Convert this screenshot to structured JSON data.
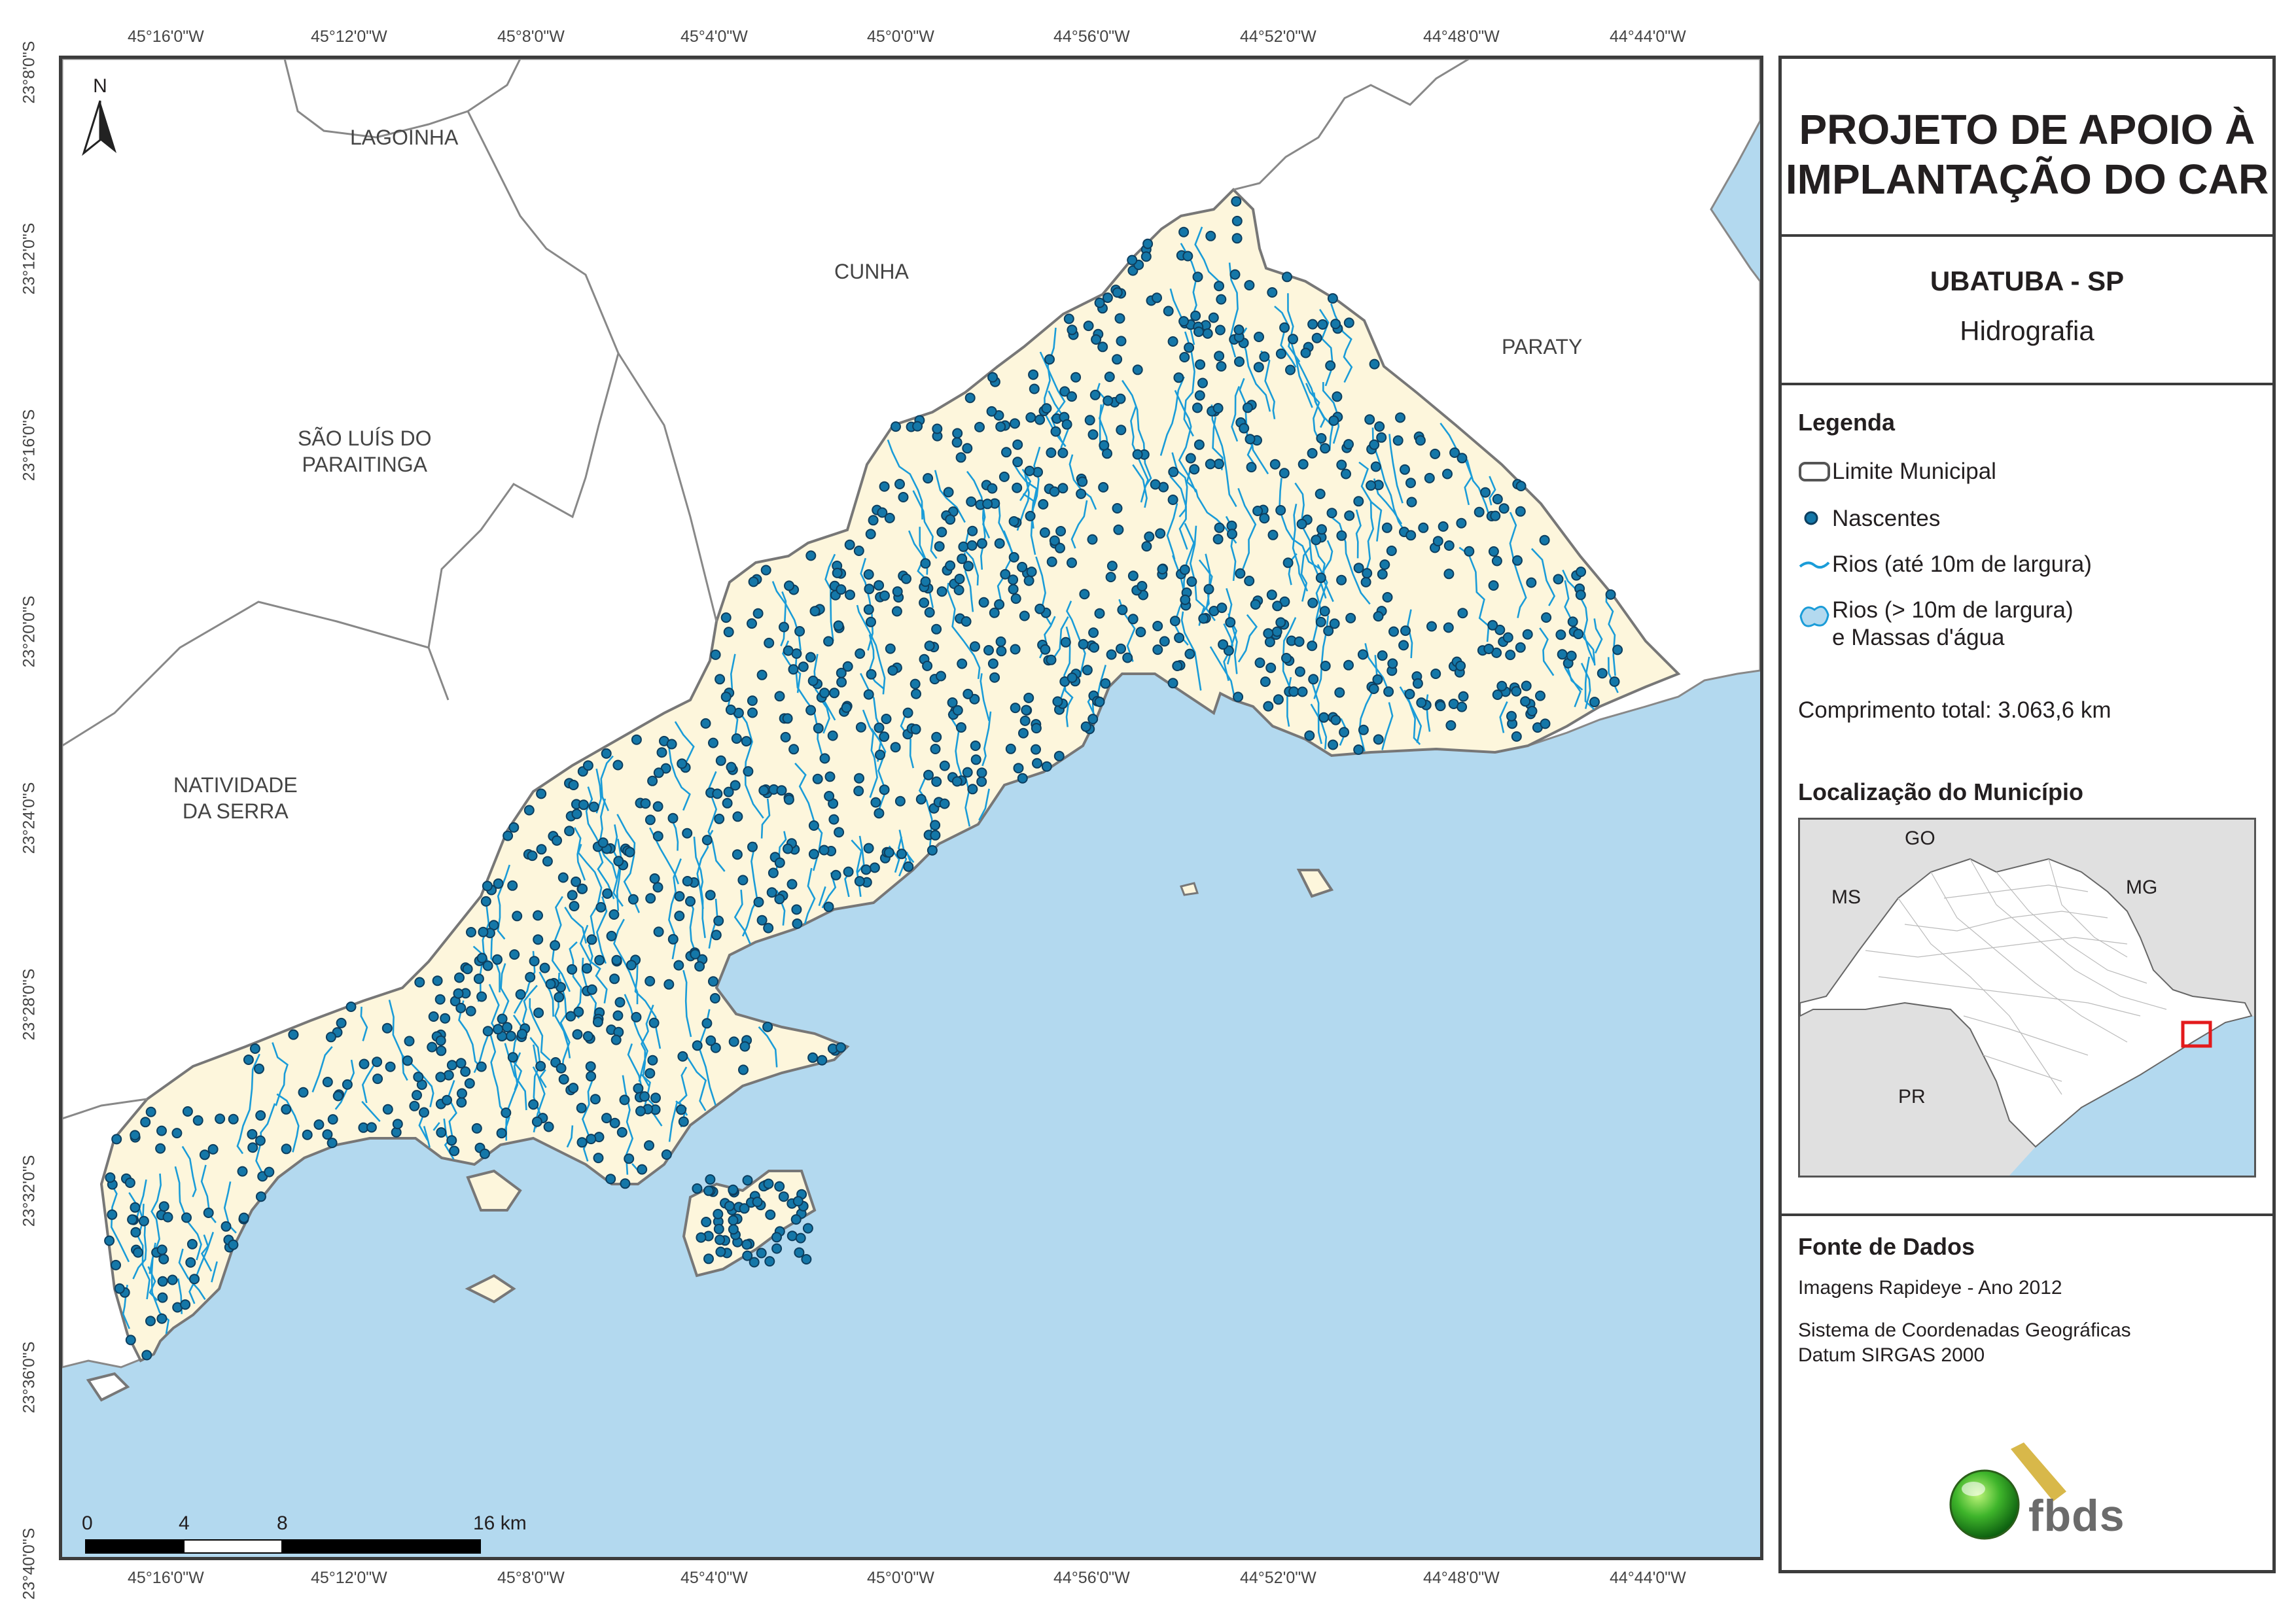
{
  "coords": {
    "top": [
      "45°16'0\"W",
      "45°12'0\"W",
      "45°8'0\"W",
      "45°4'0\"W",
      "45°0'0\"W",
      "44°56'0\"W",
      "44°52'0\"W",
      "44°48'0\"W",
      "44°44'0\"W"
    ],
    "bottom": [
      "45°16'0\"W",
      "45°12'0\"W",
      "45°8'0\"W",
      "45°4'0\"W",
      "45°0'0\"W",
      "44°56'0\"W",
      "44°52'0\"W",
      "44°48'0\"W",
      "44°44'0\"W"
    ],
    "left": [
      "23°8'0\"S",
      "23°12'0\"S",
      "23°16'0\"S",
      "23°20'0\"S",
      "23°24'0\"S",
      "23°28'0\"S",
      "23°32'0\"S",
      "23°36'0\"S",
      "23°40'0\"S"
    ]
  },
  "places": {
    "lagoinha": "LAGOINHA",
    "cunha": "CUNHA",
    "paraty": "PARATY",
    "sao_luis_1": "SÃO LUÍS DO",
    "sao_luis_2": "PARAITINGA",
    "natividade_1": "NATIVIDADE",
    "natividade_2": "DA SERRA"
  },
  "north": "N",
  "scale": {
    "labels": [
      "0",
      "4",
      "8",
      "16 km"
    ]
  },
  "panel": {
    "title_1": "PROJETO DE APOIO À",
    "title_2": "IMPLANTAÇÃO DO CAR",
    "municipality": "UBATUBA - SP",
    "theme": "Hidrografia",
    "legend_title": "Legenda",
    "legend": {
      "limite": "Limite Municipal",
      "nascentes": "Nascentes",
      "rios_small": "Rios (até 10m de largura)",
      "rios_big_1": "Rios (> 10m de largura)",
      "rios_big_2": "e Massas d'água"
    },
    "length": "Comprimento total:  3.063,6 km",
    "location_title": "Localização do Município",
    "inset": {
      "go": "GO",
      "ms": "MS",
      "mg": "MG",
      "pr": "PR"
    },
    "source_title": "Fonte de Dados",
    "source_1": "Imagens Rapideye - Ano 2012",
    "source_2": "Sistema de Coordenadas Geográficas",
    "source_3": "Datum SIRGAS 2000",
    "logo": "fbds"
  },
  "colors": {
    "ocean": "#b3d9ef",
    "land": "#ffffff",
    "municipality": "#fdf6dc",
    "river": "#1a9cd8",
    "spring": "#1477a8",
    "inset_state": "#ffffff",
    "inset_other": "#e0e0e0",
    "marker": "#e31a1c"
  }
}
